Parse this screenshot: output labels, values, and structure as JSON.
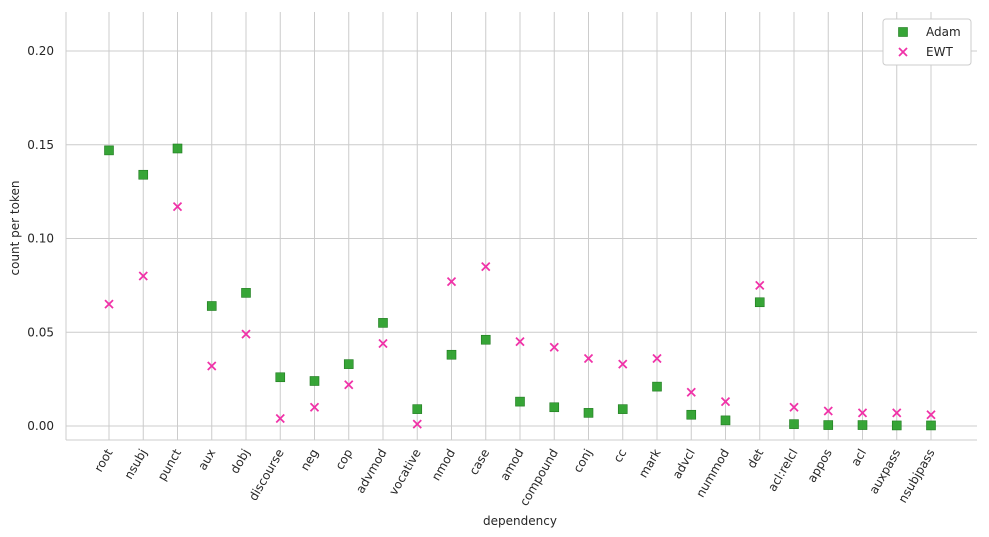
{
  "chart_data": {
    "type": "scatter",
    "title": "",
    "xlabel": "dependency",
    "ylabel": "count per token",
    "ylim": [
      -0.008,
      0.22
    ],
    "yticks": [
      0.0,
      0.05,
      0.1,
      0.15,
      0.2
    ],
    "ytick_labels": [
      "0.00",
      "0.05",
      "0.10",
      "0.15",
      "0.20"
    ],
    "grid": true,
    "legend_position": "top-right",
    "categories": [
      "root",
      "nsubj",
      "punct",
      "aux",
      "dobj",
      "discourse",
      "neg",
      "cop",
      "advmod",
      "vocative",
      "nmod",
      "case",
      "amod",
      "compound",
      "conj",
      "cc",
      "mark",
      "advcl",
      "nummod",
      "det",
      "acl:relcl",
      "appos",
      "acl",
      "auxpass",
      "nsubjpass"
    ],
    "series": [
      {
        "name": "Adam",
        "marker": "square",
        "color": "#2ca02c",
        "values": [
          0.147,
          0.134,
          0.148,
          0.064,
          0.071,
          0.026,
          0.024,
          0.033,
          0.055,
          0.009,
          0.038,
          0.046,
          0.013,
          0.01,
          0.007,
          0.009,
          0.021,
          0.006,
          0.003,
          0.066,
          0.001,
          0.0005,
          0.0005,
          0.0003,
          0.0003
        ]
      },
      {
        "name": "EWT",
        "marker": "x",
        "color": "#f032a8",
        "values": [
          0.065,
          0.08,
          0.117,
          0.032,
          0.049,
          0.004,
          0.01,
          0.022,
          0.044,
          0.001,
          0.077,
          0.085,
          0.045,
          0.042,
          0.036,
          0.033,
          0.036,
          0.018,
          0.013,
          0.075,
          0.01,
          0.008,
          0.007,
          0.007,
          0.006
        ]
      }
    ]
  }
}
